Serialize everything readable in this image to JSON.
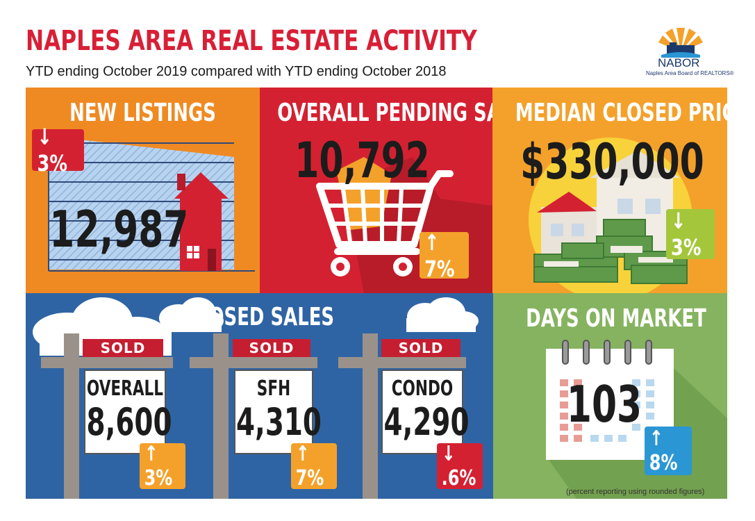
{
  "header": {
    "title": "NAPLES AREA REAL ESTATE ACTIVITY",
    "subtitle": "YTD ending October 2019 compared with YTD ending October 2018"
  },
  "logo": {
    "name": "NABOR",
    "subtitle": "Naples Area Board of REALTORS®"
  },
  "panels": {
    "new_listings": {
      "title": "NEW LISTINGS",
      "value": "12,987",
      "change": "3%",
      "direction": "down"
    },
    "pending_sales": {
      "title": "OVERALL PENDING SALES",
      "value": "10,792",
      "change": "7%",
      "direction": "up"
    },
    "median_price": {
      "title": "MEDIAN CLOSED PRICE",
      "value": "$330,000",
      "change": "3%",
      "direction": "down"
    },
    "closed_sales": {
      "title": "CLOSED SALES",
      "signs": [
        {
          "sold": "SOLD",
          "label": "OVERALL",
          "value": "8,600",
          "change": "3%",
          "direction": "up"
        },
        {
          "sold": "SOLD",
          "label": "SFH",
          "value": "4,310",
          "change": "7%",
          "direction": "up"
        },
        {
          "sold": "SOLD",
          "label": "CONDO",
          "value": "4,290",
          "change": ".6%",
          "direction": "down"
        }
      ]
    },
    "days_on_market": {
      "title": "DAYS ON MARKET",
      "value": "103",
      "change": "8%",
      "direction": "up"
    }
  },
  "footnote": "(percent reporting using rounded figures)",
  "colors": {
    "title_red": "#d81f36",
    "orange": "#ef8a23",
    "red": "#d42131",
    "blue": "#2f64a4",
    "green": "#86b360",
    "badge_orange": "#f4a12b",
    "badge_red": "#d42131",
    "badge_green": "#a4c63b",
    "badge_blue": "#2b96d4"
  }
}
